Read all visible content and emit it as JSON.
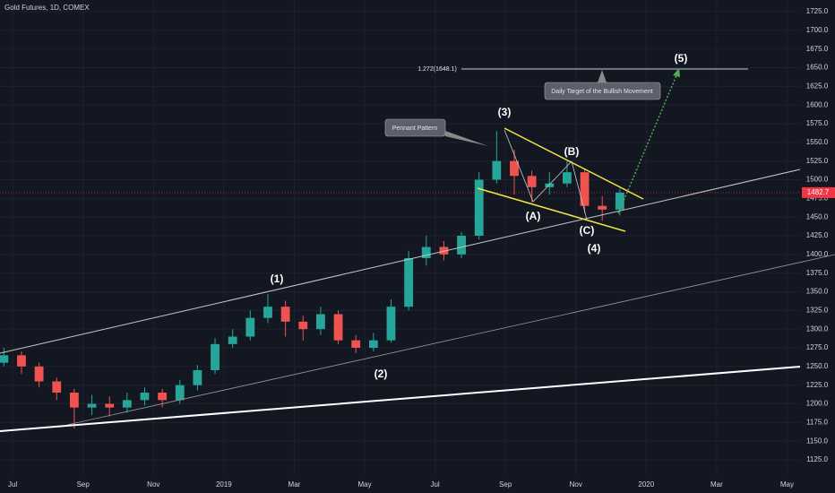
{
  "chart_data": {
    "type": "candlestick",
    "title": "Gold Futures, 1D, COMEX",
    "candles": {
      "x": [
        -0.25,
        0.25,
        0.75,
        1.25,
        1.75,
        2.25,
        2.75,
        3.25,
        3.75,
        4.25,
        4.75,
        5.25,
        5.75,
        6.25,
        6.75,
        7.25,
        7.75,
        8.25,
        8.75,
        9.25,
        9.75,
        10.25,
        10.75,
        11.25,
        11.75,
        12.25,
        12.75,
        13.25,
        13.75,
        14.25,
        14.75,
        15.25,
        15.75,
        16.25,
        16.75,
        17.25
      ],
      "open": [
        1255,
        1265,
        1250,
        1230,
        1215,
        1195,
        1200,
        1195,
        1205,
        1215,
        1205,
        1225,
        1245,
        1280,
        1290,
        1315,
        1330,
        1310,
        1300,
        1320,
        1285,
        1275,
        1285,
        1330,
        1395,
        1410,
        1400,
        1425,
        1500,
        1525,
        1505,
        1490,
        1495,
        1510,
        1465,
        1460
      ],
      "high": [
        1275,
        1270,
        1255,
        1235,
        1220,
        1212,
        1210,
        1215,
        1222,
        1220,
        1232,
        1252,
        1288,
        1300,
        1325,
        1347,
        1338,
        1318,
        1330,
        1325,
        1292,
        1295,
        1340,
        1405,
        1425,
        1418,
        1430,
        1510,
        1565,
        1540,
        1512,
        1510,
        1525,
        1515,
        1478,
        1488
      ],
      "low": [
        1250,
        1240,
        1222,
        1205,
        1167,
        1185,
        1183,
        1188,
        1198,
        1195,
        1200,
        1218,
        1240,
        1275,
        1285,
        1308,
        1290,
        1285,
        1292,
        1280,
        1268,
        1270,
        1282,
        1325,
        1385,
        1392,
        1395,
        1420,
        1495,
        1480,
        1470,
        1480,
        1490,
        1455,
        1445,
        1452
      ],
      "close": [
        1265,
        1250,
        1230,
        1215,
        1195,
        1200,
        1195,
        1205,
        1215,
        1205,
        1225,
        1245,
        1280,
        1290,
        1315,
        1330,
        1310,
        1300,
        1320,
        1285,
        1275,
        1285,
        1330,
        1395,
        1410,
        1400,
        1425,
        1500,
        1525,
        1505,
        1490,
        1495,
        1510,
        1465,
        1460,
        1482.7
      ]
    },
    "up_color": "#26a69a",
    "down_color": "#ef5350",
    "last_price": 1482.7,
    "last_price_color": "#f23645",
    "xlim": [
      -0.36,
      22.37
    ],
    "xticks": [
      {
        "value": 0,
        "label": "Jul"
      },
      {
        "value": 2,
        "label": "Sep"
      },
      {
        "value": 4,
        "label": "Nov"
      },
      {
        "value": 6,
        "label": "2019"
      },
      {
        "value": 8,
        "label": "Mar"
      },
      {
        "value": 10,
        "label": "May"
      },
      {
        "value": 12,
        "label": "Jul"
      },
      {
        "value": 14,
        "label": "Sep"
      },
      {
        "value": 16,
        "label": "Nov"
      },
      {
        "value": 18,
        "label": "2020"
      },
      {
        "value": 20,
        "label": "Mar"
      },
      {
        "value": 22,
        "label": "May"
      }
    ],
    "ylim": [
      1125,
      1725
    ],
    "yticks": [
      {
        "value": 1125,
        "label": "1125.0"
      },
      {
        "value": 1150,
        "label": "1150.0"
      },
      {
        "value": 1175,
        "label": "1175.0"
      },
      {
        "value": 1200,
        "label": "1200.0"
      },
      {
        "value": 1225,
        "label": "1225.0"
      },
      {
        "value": 1250,
        "label": "1250.0"
      },
      {
        "value": 1275,
        "label": "1275.0"
      },
      {
        "value": 1300,
        "label": "1300.0"
      },
      {
        "value": 1325,
        "label": "1325.0"
      },
      {
        "value": 1350,
        "label": "1350.0"
      },
      {
        "value": 1375,
        "label": "1375.0"
      },
      {
        "value": 1400,
        "label": "1400.0"
      },
      {
        "value": 1425,
        "label": "1425.0"
      },
      {
        "value": 1450,
        "label": "1450.0"
      },
      {
        "value": 1475,
        "label": "1475.0"
      },
      {
        "value": 1500,
        "label": "1500.0"
      },
      {
        "value": 1525,
        "label": "1525.0"
      },
      {
        "value": 1550,
        "label": "1550.0"
      },
      {
        "value": 1575,
        "label": "1575.0"
      },
      {
        "value": 1600,
        "label": "1600.0"
      },
      {
        "value": 1625,
        "label": "1625.0"
      },
      {
        "value": 1650,
        "label": "1650.0"
      },
      {
        "value": 1675,
        "label": "1675.0"
      },
      {
        "value": 1700,
        "label": "1700.0"
      },
      {
        "value": 1725,
        "label": "1725.0"
      }
    ],
    "annotations": {
      "waves": [
        "(1)",
        "(2)",
        "(3)",
        "(4)",
        "(5)",
        "(A)",
        "(B)",
        "(C)"
      ],
      "fib_label": "1.272(1648.1)",
      "target_note": "Daily Target of the Bullish Movement",
      "pattern_note": "Pennant Pattern"
    }
  }
}
